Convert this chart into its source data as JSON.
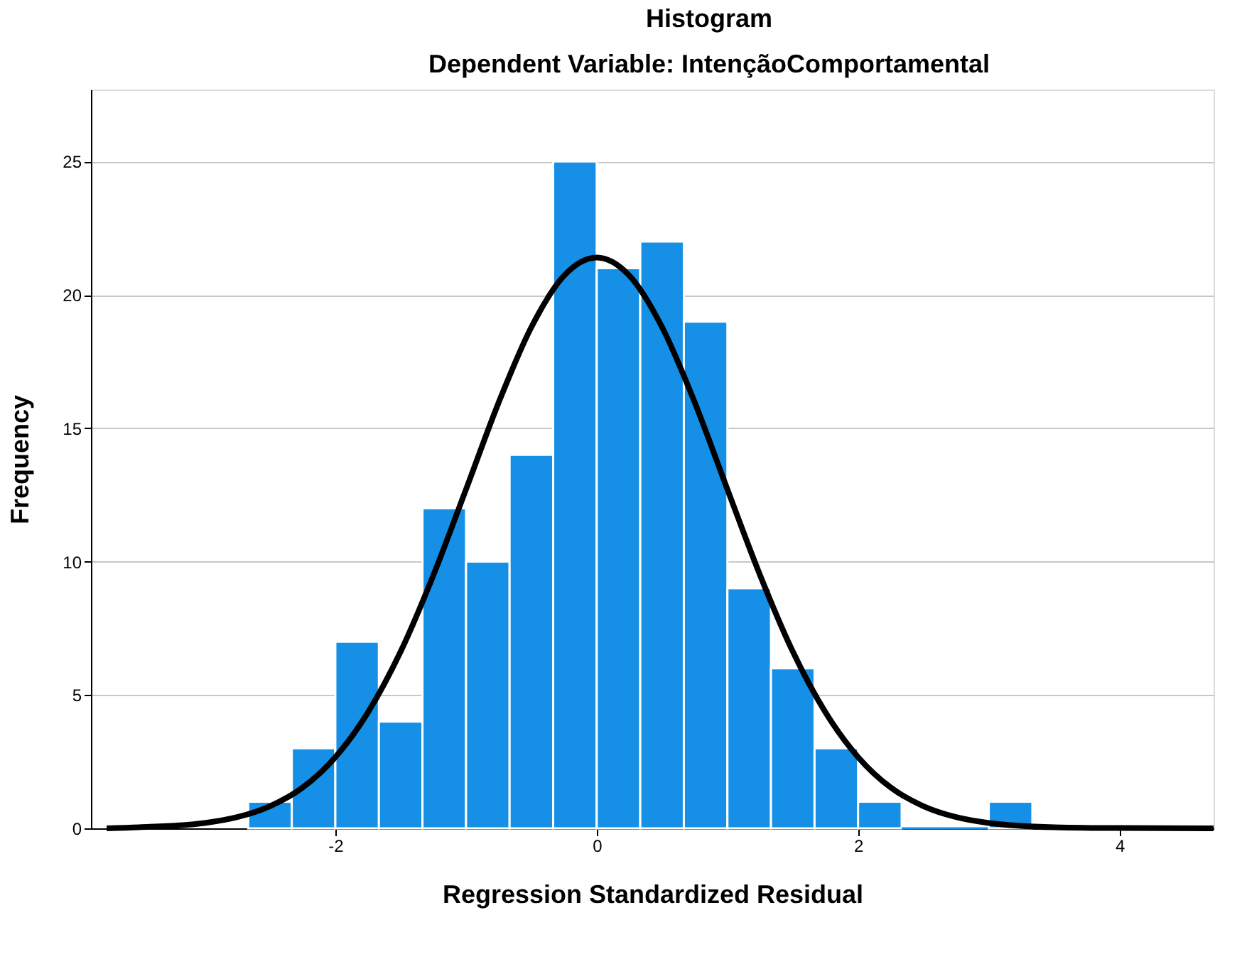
{
  "chart_data": {
    "type": "histogram",
    "title": "Histogram",
    "subtitle": "Dependent Variable: IntençãoComportamental",
    "xlabel": "Regression Standardized Residual",
    "ylabel": "Frequency",
    "bins": [
      -2.6667,
      -2.3333,
      -2.0,
      -1.6667,
      -1.3333,
      -1.0,
      -0.6667,
      -0.3333,
      0.0,
      0.3333,
      0.6667,
      1.0,
      1.3333,
      1.6667,
      2.0,
      2.3333,
      2.6667,
      3.0,
      3.3333
    ],
    "values": [
      1,
      3,
      7,
      4,
      12,
      10,
      14,
      25,
      21,
      22,
      19,
      9,
      6,
      3,
      1,
      0,
      0,
      1
    ],
    "color": "#1590e6",
    "series": [
      {
        "type": "line",
        "color": "#000000",
        "x": [
          -3.75,
          -3.5,
          -3.0,
          -2.75,
          -2.5,
          -2.25,
          -2.0,
          -1.75,
          -1.5,
          -1.25,
          -1.0,
          -0.75,
          -0.5,
          -0.25,
          0.0,
          0.25,
          0.5,
          0.75,
          1.0,
          1.25,
          1.5,
          1.75,
          2.0,
          2.25,
          2.5,
          2.75,
          3.0,
          3.5,
          4.0,
          4.72
        ],
        "values": [
          0.0,
          0.04,
          0.2,
          0.42,
          0.83,
          1.53,
          2.67,
          4.35,
          6.63,
          9.49,
          12.71,
          15.97,
          18.79,
          20.72,
          21.4,
          20.72,
          18.79,
          15.97,
          12.71,
          9.49,
          6.63,
          4.35,
          2.67,
          1.53,
          0.83,
          0.42,
          0.2,
          0.04,
          0.01,
          0.0
        ]
      }
    ],
    "xlim": [
      -3.87,
      4.72
    ],
    "ylim": [
      0,
      27.7
    ],
    "xticks": [
      -2,
      0,
      2,
      4
    ],
    "yticks": [
      0,
      5,
      10,
      15,
      20,
      25
    ],
    "grid": "y"
  }
}
